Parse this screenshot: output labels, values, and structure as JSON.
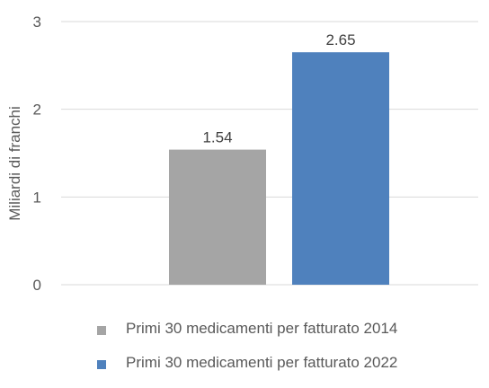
{
  "chart_data": {
    "type": "bar",
    "ylabel": "Miliardi di franchi",
    "ylim": [
      0,
      3
    ],
    "yticks": [
      0,
      1,
      2,
      3
    ],
    "grid": true,
    "legend_position": "bottom",
    "series": [
      {
        "name": "Primi 30 medicamenti per fatturato 2014",
        "value": 1.54,
        "label": "1.54",
        "color": "#a5a5a5"
      },
      {
        "name": "Primi 30 medicamenti per fatturato 2022",
        "value": 2.65,
        "label": "2.65",
        "color": "#4f81bd"
      }
    ]
  }
}
